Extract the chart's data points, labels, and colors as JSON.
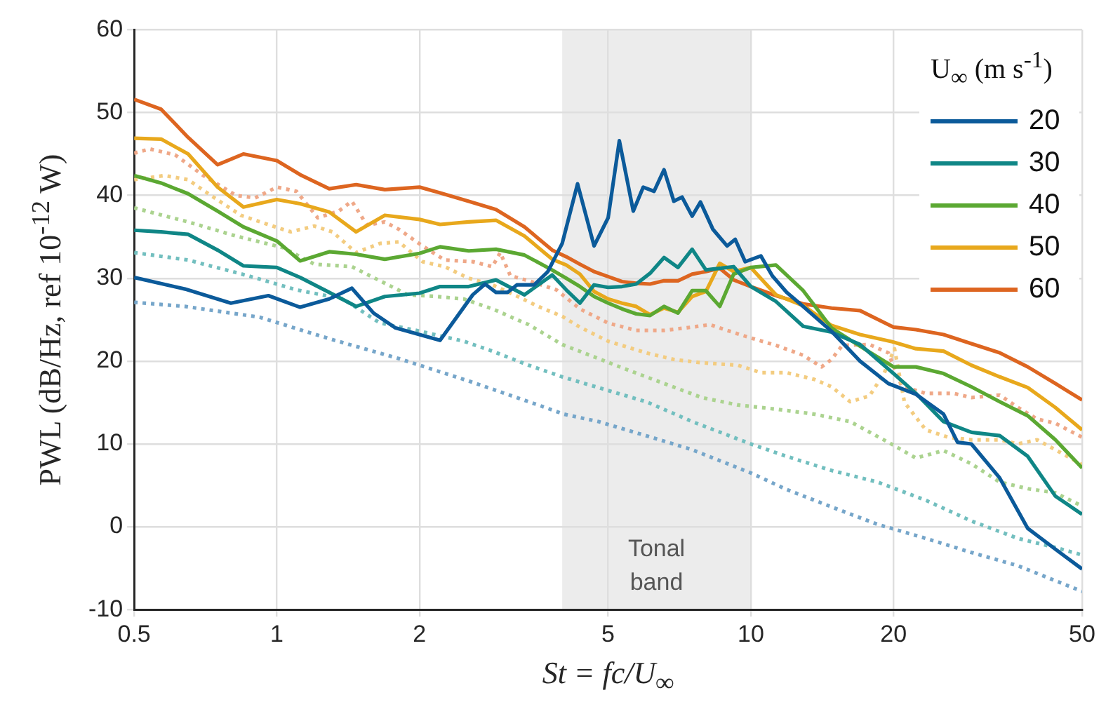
{
  "chart_data": {
    "type": "line",
    "xlabel": "St = fc/U$_{∞}$",
    "ylabel": "PWL (dB/Hz, ref 10$^{-12}$ W)",
    "legend_title": "U$_{∞}$ (m s$^{-1}$)",
    "log": "x",
    "xlim": [
      0.5,
      50
    ],
    "ylim": [
      -10,
      60
    ],
    "xticks": [
      0.5,
      1,
      2,
      5,
      10,
      20,
      50
    ],
    "yticks": [
      -10,
      0,
      10,
      20,
      30,
      40,
      50,
      60
    ],
    "grid": true,
    "legend": "top right",
    "bands": [
      {
        "axis": "x",
        "from": 4,
        "to": 10,
        "label": "Tonal band",
        "color": "#ececec"
      }
    ],
    "x": [
      0.5,
      0.57,
      0.65,
      0.75,
      0.85,
      1,
      1.12,
      1.29,
      1.47,
      1.69,
      2,
      2.21,
      2.54,
      2.9,
      3.33,
      3.81,
      4.08,
      4.36,
      4.67,
      5,
      5.35,
      5.73,
      6.13,
      6.56,
      7.02,
      7.52,
      8.04,
      8.6,
      9.2,
      10,
      11.3,
      12.9,
      14.8,
      17,
      20,
      22.3,
      25.5,
      29.2,
      33.5,
      38.4,
      43.9,
      50
    ],
    "series": [
      {
        "name": "20",
        "color": "#0b5a9a",
        "x": [
          0.5,
          0.64,
          0.8,
          0.96,
          1.12,
          1.29,
          1.44,
          1.6,
          1.78,
          2.21,
          2.59,
          2.75,
          2.9,
          3.07,
          3.21,
          3.49,
          3.73,
          4.0,
          4.31,
          4.67,
          5,
          5.28,
          5.65,
          5.93,
          6.25,
          6.56,
          6.88,
          7.16,
          7.52,
          7.83,
          8.32,
          8.91,
          9.27,
          9.73,
          10.5,
          11.1,
          11.9,
          12.9,
          14.8,
          17,
          19.5,
          22.3,
          25.5,
          27.3,
          29.2,
          33.5,
          38.4,
          43.9,
          50
        ],
        "values": [
          30.1,
          28.7,
          27,
          27.9,
          26.5,
          27.5,
          28.8,
          25.8,
          24,
          22.5,
          28,
          29.3,
          28.3,
          28.3,
          29.2,
          29.2,
          30.8,
          34.2,
          41.4,
          33.9,
          37.3,
          46.6,
          38.1,
          41,
          40.5,
          43.1,
          39.3,
          39.8,
          37.5,
          39.2,
          35.9,
          33.9,
          34.7,
          32,
          32.7,
          30.3,
          28.3,
          26.6,
          23.6,
          20,
          17.3,
          16,
          13.6,
          10.2,
          10,
          5.9,
          -0.2,
          -2.7,
          -5.1
        ]
      },
      {
        "name": "30",
        "color": "#0f8686",
        "values": [
          35.8,
          35.6,
          35.3,
          33.4,
          31.5,
          31.3,
          30.1,
          28.3,
          26.6,
          27.8,
          28.2,
          29,
          29,
          29.8,
          28,
          30.4,
          28.6,
          27,
          29.2,
          28.9,
          29,
          29.3,
          30.6,
          32.5,
          31.3,
          33.5,
          31,
          31.2,
          31.4,
          29,
          27.2,
          24.2,
          23.5,
          22,
          18.5,
          16.1,
          12.7,
          11.4,
          11,
          8.5,
          3.7,
          1.5
        ]
      },
      {
        "name": "40",
        "color": "#5ba832",
        "values": [
          42.4,
          41.5,
          40.2,
          38.1,
          36.2,
          34.5,
          32.1,
          33.2,
          32.9,
          32.3,
          33,
          33.8,
          33.3,
          33.5,
          32.8,
          31,
          30,
          29,
          27.8,
          27,
          26.3,
          25.7,
          25.5,
          26.6,
          25.8,
          28.5,
          28.5,
          26.6,
          30.5,
          31.3,
          31.6,
          28.5,
          24,
          21.8,
          19.3,
          19.3,
          18.5,
          16.9,
          15.1,
          13.4,
          10.5,
          7.1
        ]
      },
      {
        "name": "50",
        "color": "#e8a81c",
        "values": [
          46.9,
          46.8,
          45,
          41,
          38.6,
          39.5,
          39,
          38,
          35.6,
          37.6,
          37.1,
          36.5,
          36.8,
          37,
          35.1,
          32.3,
          31.6,
          30.5,
          28.4,
          27.5,
          27,
          26.6,
          25.6,
          26.4,
          25.9,
          27.8,
          28.4,
          31.8,
          30.8,
          31.3,
          28,
          26.7,
          24.3,
          23.2,
          22.3,
          21.5,
          21.2,
          19.5,
          18.1,
          16.8,
          14.4,
          11.7
        ]
      },
      {
        "name": "60",
        "color": "#dd6520",
        "values": [
          51.6,
          50.4,
          47,
          43.7,
          45,
          44.2,
          42.5,
          40.8,
          41.3,
          40.7,
          41,
          40.3,
          39.3,
          38.3,
          36.2,
          33.4,
          32.6,
          31.7,
          30.8,
          30.2,
          29.6,
          29.4,
          29.3,
          29.7,
          29.7,
          30.5,
          30.8,
          31.2,
          29.8,
          29,
          27.9,
          26.9,
          26.4,
          26.1,
          24.1,
          23.8,
          23.2,
          22.1,
          21,
          19.3,
          17.3,
          15.3
        ]
      },
      {
        "color": "#76a6ca",
        "line_style": "dotted",
        "x": [
          0.5,
          0.64,
          0.92,
          1.29,
          1.81,
          2.54,
          3.56,
          4.03,
          4.77,
          6.01,
          7.52,
          10,
          11.9,
          14.8,
          18.5,
          23.4,
          29.2,
          36.6,
          50
        ],
        "values": [
          27.1,
          26.6,
          25.3,
          22.7,
          20.3,
          17.6,
          14.7,
          13.6,
          12.7,
          11,
          9.3,
          6.5,
          4.5,
          2.4,
          0.3,
          -1.4,
          -3.1,
          -4.7,
          -7.8
        ]
      },
      {
        "color": "#72bfbf",
        "line_style": "dotted",
        "x": [
          0.5,
          0.65,
          0.87,
          1.1,
          1.38,
          1.65,
          1.97,
          2.48,
          2.85,
          3.4,
          4.0,
          4.77,
          6.01,
          7.52,
          10,
          11.9,
          14.8,
          18.5,
          23.4,
          29.2,
          36.6,
          43.9,
          50
        ],
        "values": [
          33.1,
          32.2,
          30.3,
          28.6,
          27.5,
          24.6,
          23.7,
          22.4,
          21.2,
          19.5,
          18.1,
          16.8,
          15.1,
          12.7,
          10,
          8.5,
          6.8,
          5.4,
          3.2,
          0.7,
          -1.4,
          -2.5,
          -3.4
        ]
      },
      {
        "color": "#abd38f",
        "line_style": "dotted",
        "x": [
          0.5,
          0.65,
          0.82,
          1.03,
          1.2,
          1.44,
          1.65,
          1.89,
          2.17,
          2.48,
          2.85,
          3.4,
          4.0,
          4.58,
          5.46,
          6.56,
          7.88,
          9.4,
          11.3,
          13.6,
          16.2,
          19.5,
          22.3,
          25.5,
          29.2,
          33.5,
          38.4,
          43.9,
          50
        ],
        "values": [
          38.5,
          36.8,
          35.1,
          33.7,
          31.7,
          31.4,
          29.7,
          28,
          27.8,
          27.5,
          26.3,
          24.4,
          22,
          20.7,
          19,
          17.3,
          15.6,
          14.7,
          14.2,
          13.6,
          12.7,
          10.2,
          8.3,
          9.2,
          7.6,
          5.4,
          4.6,
          4.1,
          2.5
        ]
      },
      {
        "color": "#f3cc80",
        "line_style": "dotted",
        "x": [
          0.5,
          0.58,
          0.65,
          0.73,
          0.84,
          0.98,
          1.07,
          1.2,
          1.31,
          1.47,
          1.65,
          1.81,
          2.03,
          2.26,
          2.54,
          2.85,
          3.17,
          3.56,
          4.0,
          4.36,
          5,
          6.01,
          6.88,
          7.88,
          9.4,
          10.5,
          11.9,
          13.6,
          14.8,
          16.2,
          17.8,
          19.1,
          20.1,
          21.1,
          23.4,
          26.1,
          29.2,
          33.5,
          36.6,
          40.2,
          43.9,
          50
        ],
        "values": [
          41.9,
          42.4,
          41.9,
          39.9,
          37.6,
          36.3,
          35.6,
          36.3,
          35.6,
          33.1,
          34.2,
          34.4,
          32,
          31.4,
          30,
          29.2,
          28,
          26.6,
          25.4,
          24.1,
          22.4,
          21,
          20.2,
          19.8,
          19.5,
          18.6,
          18.6,
          17.8,
          16.9,
          15.1,
          15.8,
          18.5,
          21.5,
          15,
          11.7,
          10.8,
          10.5,
          10.5,
          10,
          10.5,
          9.3,
          7.5
        ]
      },
      {
        "color": "#efa888",
        "line_style": "dotted",
        "x": [
          0.5,
          0.54,
          0.61,
          0.7,
          0.82,
          0.9,
          1,
          1.1,
          1.22,
          1.35,
          1.44,
          1.55,
          1.69,
          1.81,
          2.03,
          2.26,
          2.59,
          2.85,
          2.96,
          3.11,
          3.4,
          3.89,
          4.36,
          5,
          5.73,
          6.56,
          7.52,
          8.2,
          9.03,
          9.86,
          11.3,
          12.9,
          14.1,
          14.8,
          15.6,
          17.8,
          19.5,
          20.8,
          23.4,
          26.8,
          29.2,
          33.5,
          36.6,
          40.2,
          43.9,
          50
        ],
        "values": [
          45.1,
          45.6,
          44.9,
          42.4,
          40,
          39.7,
          41,
          40.5,
          37.3,
          38.1,
          39.3,
          36.4,
          36.8,
          35.9,
          33.9,
          32.2,
          32,
          31.4,
          33.1,
          30.3,
          29.7,
          28.6,
          26.3,
          24.6,
          23.7,
          23.7,
          24.1,
          24.4,
          23.6,
          22.9,
          21.9,
          20.7,
          19.3,
          20.2,
          21.9,
          22,
          21,
          17,
          16.1,
          16.1,
          15.6,
          15.9,
          14.4,
          13,
          12.5,
          10.8
        ]
      }
    ]
  }
}
